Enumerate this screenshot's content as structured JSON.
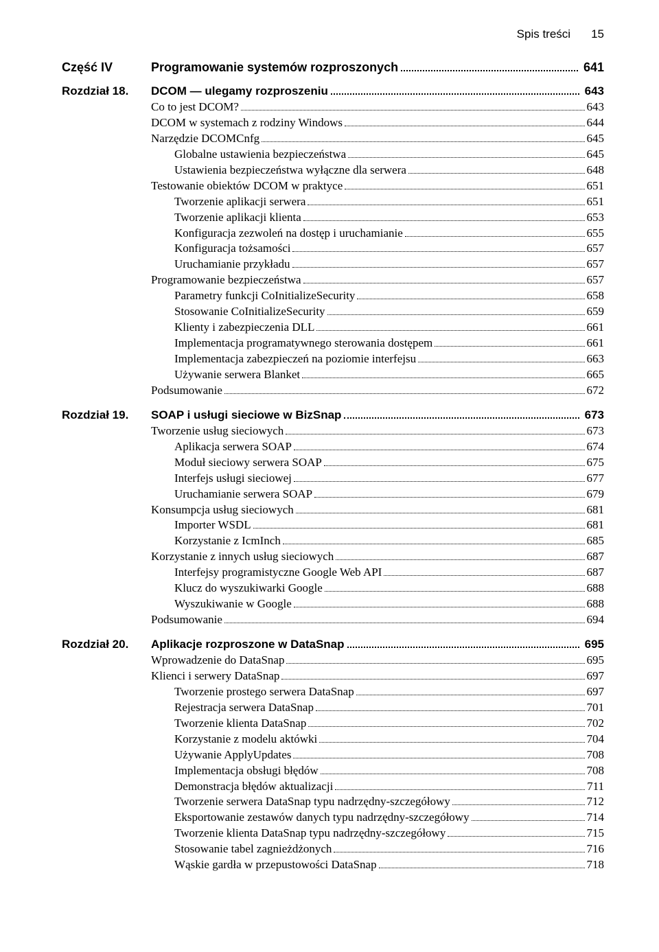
{
  "header": {
    "title": "Spis treści",
    "pagenum": "15"
  },
  "part": {
    "label": "Część IV",
    "title": "Programowanie systemów rozproszonych",
    "page": "641"
  },
  "chapters": [
    {
      "label": "Rozdział 18.",
      "title": "DCOM — ulegamy rozproszeniu",
      "page": "643",
      "entries": [
        {
          "level": 0,
          "title": "Co to jest DCOM?",
          "page": "643"
        },
        {
          "level": 0,
          "title": "DCOM w systemach z rodziny Windows",
          "page": "644"
        },
        {
          "level": 0,
          "title": "Narzędzie DCOMCnfg",
          "page": "645"
        },
        {
          "level": 1,
          "title": "Globalne ustawienia bezpieczeństwa",
          "page": "645"
        },
        {
          "level": 1,
          "title": "Ustawienia bezpieczeństwa wyłączne dla serwera",
          "page": "648"
        },
        {
          "level": 0,
          "title": "Testowanie obiektów DCOM w praktyce",
          "page": "651"
        },
        {
          "level": 1,
          "title": "Tworzenie aplikacji serwera",
          "page": "651"
        },
        {
          "level": 1,
          "title": "Tworzenie aplikacji klienta",
          "page": "653"
        },
        {
          "level": 1,
          "title": "Konfiguracja zezwoleń na dostęp i uruchamianie",
          "page": "655"
        },
        {
          "level": 1,
          "title": "Konfiguracja tożsamości",
          "page": "657"
        },
        {
          "level": 1,
          "title": "Uruchamianie przykładu",
          "page": "657"
        },
        {
          "level": 0,
          "title": "Programowanie bezpieczeństwa",
          "page": "657"
        },
        {
          "level": 1,
          "title": "Parametry funkcji CoInitializeSecurity",
          "page": "658"
        },
        {
          "level": 1,
          "title": "Stosowanie CoInitializeSecurity",
          "page": "659"
        },
        {
          "level": 1,
          "title": "Klienty i zabezpieczenia DLL",
          "page": "661"
        },
        {
          "level": 1,
          "title": "Implementacja programatywnego sterowania dostępem",
          "page": "661"
        },
        {
          "level": 1,
          "title": "Implementacja zabezpieczeń na poziomie interfejsu",
          "page": "663"
        },
        {
          "level": 1,
          "title": "Używanie serwera Blanket",
          "page": "665"
        },
        {
          "level": 0,
          "title": "Podsumowanie",
          "page": "672"
        }
      ]
    },
    {
      "label": "Rozdział 19.",
      "title": "SOAP i usługi sieciowe w BizSnap",
      "page": "673",
      "entries": [
        {
          "level": 0,
          "title": "Tworzenie usług sieciowych",
          "page": "673"
        },
        {
          "level": 1,
          "title": "Aplikacja serwera SOAP",
          "page": "674"
        },
        {
          "level": 1,
          "title": "Moduł sieciowy serwera SOAP",
          "page": "675"
        },
        {
          "level": 1,
          "title": "Interfejs usługi sieciowej",
          "page": "677"
        },
        {
          "level": 1,
          "title": "Uruchamianie serwera SOAP",
          "page": "679"
        },
        {
          "level": 0,
          "title": "Konsumpcja usług sieciowych",
          "page": "681"
        },
        {
          "level": 1,
          "title": "Importer WSDL",
          "page": "681"
        },
        {
          "level": 1,
          "title": "Korzystanie z IcmInch",
          "page": "685"
        },
        {
          "level": 0,
          "title": "Korzystanie z innych usług sieciowych",
          "page": "687"
        },
        {
          "level": 1,
          "title": "Interfejsy programistyczne Google Web API",
          "page": "687"
        },
        {
          "level": 1,
          "title": "Klucz do wyszukiwarki Google",
          "page": "688"
        },
        {
          "level": 1,
          "title": "Wyszukiwanie w Google",
          "page": "688"
        },
        {
          "level": 0,
          "title": "Podsumowanie",
          "page": "694"
        }
      ]
    },
    {
      "label": "Rozdział 20.",
      "title": "Aplikacje rozproszone w DataSnap",
      "page": "695",
      "entries": [
        {
          "level": 0,
          "title": "Wprowadzenie do DataSnap",
          "page": "695"
        },
        {
          "level": 0,
          "title": "Klienci i serwery DataSnap",
          "page": "697"
        },
        {
          "level": 1,
          "title": "Tworzenie prostego serwera DataSnap",
          "page": "697"
        },
        {
          "level": 1,
          "title": "Rejestracja serwera DataSnap",
          "page": "701"
        },
        {
          "level": 1,
          "title": "Tworzenie klienta DataSnap",
          "page": "702"
        },
        {
          "level": 1,
          "title": "Korzystanie z modelu aktówki",
          "page": "704"
        },
        {
          "level": 1,
          "title": "Używanie ApplyUpdates",
          "page": "708"
        },
        {
          "level": 1,
          "title": "Implementacja obsługi błędów",
          "page": "708"
        },
        {
          "level": 1,
          "title": "Demonstracja błędów aktualizacji",
          "page": "711"
        },
        {
          "level": 1,
          "title": "Tworzenie serwera DataSnap typu nadrzędny-szczegółowy",
          "page": "712"
        },
        {
          "level": 1,
          "title": "Eksportowanie zestawów danych typu nadrzędny-szczegółowy",
          "page": "714"
        },
        {
          "level": 1,
          "title": "Tworzenie klienta DataSnap typu nadrzędny-szczegółowy",
          "page": "715"
        },
        {
          "level": 1,
          "title": "Stosowanie tabel zagnieżdżonych",
          "page": "716"
        },
        {
          "level": 1,
          "title": "Wąskie gardła w przepustowości DataSnap",
          "page": "718"
        }
      ]
    }
  ]
}
